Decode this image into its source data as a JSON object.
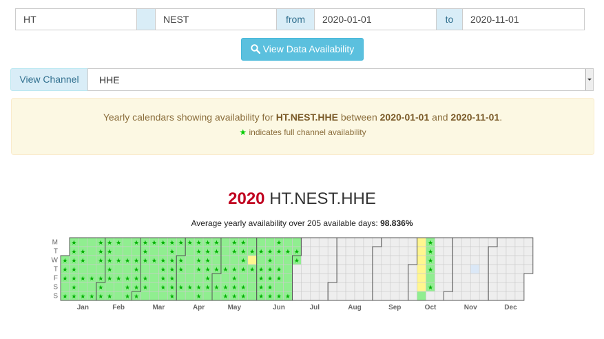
{
  "form": {
    "network_value": "HT",
    "station_value": "NEST",
    "from_label": "from",
    "from_value": "2020-01-01",
    "to_label": "to",
    "to_value": "2020-11-01",
    "view_button_label": "View Data Availability"
  },
  "channel": {
    "addon_label": "View Channel",
    "selected": "HHE"
  },
  "info": {
    "prefix": "Yearly calendars showing availability for",
    "channel_id": "HT.NEST.HHE",
    "between": "between",
    "start": "2020-01-01",
    "and": "and",
    "end": "2020-11-01",
    "period": ".",
    "legend_star": "★",
    "legend_text": "indicates full channel availability"
  },
  "calendar": {
    "year": "2020",
    "channel_id": "HT.NEST.HHE",
    "avg_text": "Average yearly availability over 205 available days:",
    "avg_value": "98.836%",
    "day_labels": [
      "M",
      "T",
      "W",
      "T",
      "F",
      "S",
      "S"
    ],
    "month_labels": [
      "Jan",
      "Feb",
      "Mar",
      "Apr",
      "May",
      "Jun",
      "Jul",
      "Aug",
      "Sep",
      "Oct",
      "Nov",
      "Dec"
    ],
    "colors": {
      "full": "#90ee90",
      "partial": "#fff68f",
      "empty": "#eeeeee",
      "future_blue": "#dbe8f7",
      "star": "#00b000",
      "month_border": "#555555"
    }
  }
}
